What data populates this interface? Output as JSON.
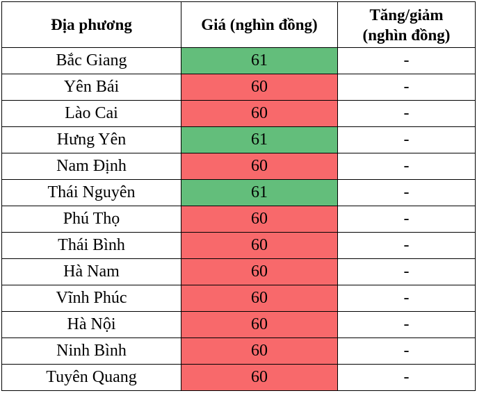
{
  "headers": [
    "Địa phương",
    "Giá (nghìn đồng)",
    "Tăng/giảm (nghìn đồng)"
  ],
  "colors": {
    "up": "#63be7b",
    "down": "#f8696b"
  },
  "rows": [
    {
      "place": "Bắc Giang",
      "price": "61",
      "change": "-",
      "color": "#63be7b"
    },
    {
      "place": "Yên Bái",
      "price": "60",
      "change": "-",
      "color": "#f8696b"
    },
    {
      "place": "Lào Cai",
      "price": "60",
      "change": "-",
      "color": "#f8696b"
    },
    {
      "place": "Hưng Yên",
      "price": "61",
      "change": "-",
      "color": "#63be7b"
    },
    {
      "place": "Nam Định",
      "price": "60",
      "change": "-",
      "color": "#f8696b"
    },
    {
      "place": "Thái Nguyên",
      "price": "61",
      "change": "-",
      "color": "#63be7b"
    },
    {
      "place": "Phú Thọ",
      "price": "60",
      "change": "-",
      "color": "#f8696b"
    },
    {
      "place": "Thái Bình",
      "price": "60",
      "change": "-",
      "color": "#f8696b"
    },
    {
      "place": "Hà Nam",
      "price": "60",
      "change": "-",
      "color": "#f8696b"
    },
    {
      "place": "Vĩnh Phúc",
      "price": "60",
      "change": "-",
      "color": "#f8696b"
    },
    {
      "place": "Hà Nội",
      "price": "60",
      "change": "-",
      "color": "#f8696b"
    },
    {
      "place": "Ninh Bình",
      "price": "60",
      "change": "-",
      "color": "#f8696b"
    },
    {
      "place": "Tuyên Quang",
      "price": "60",
      "change": "-",
      "color": "#f8696b"
    }
  ]
}
